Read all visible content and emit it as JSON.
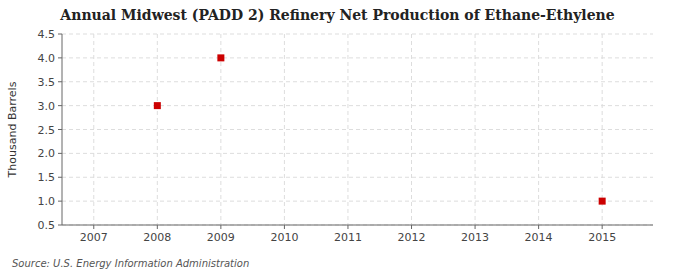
{
  "chart_data": {
    "type": "scatter",
    "title": "Annual Midwest (PADD 2) Refinery Net Production of Ethane-Ethylene",
    "ylabel": "Thousand Barrels",
    "annotation": "Source: U.S. Energy Information Administration",
    "x": [
      2008,
      2009,
      2015
    ],
    "values": [
      3.0,
      4.0,
      1.0
    ],
    "color": "#cc0000",
    "marker": "square",
    "xlim": [
      2006.5,
      2015.8
    ],
    "ylim": [
      0.5,
      4.5
    ],
    "xticks": [
      2007,
      2008,
      2009,
      2010,
      2011,
      2012,
      2013,
      2014,
      2015
    ],
    "yticks": [
      0.5,
      {
        "value": 1.0,
        "label": "1.0"
      },
      1.5,
      {
        "value": 2.0,
        "label": "2.0"
      },
      2.5,
      {
        "value": 3.0,
        "label": "3.0"
      },
      3.5,
      {
        "value": 4.0,
        "label": "4.0"
      },
      4.5
    ],
    "grid": true
  }
}
